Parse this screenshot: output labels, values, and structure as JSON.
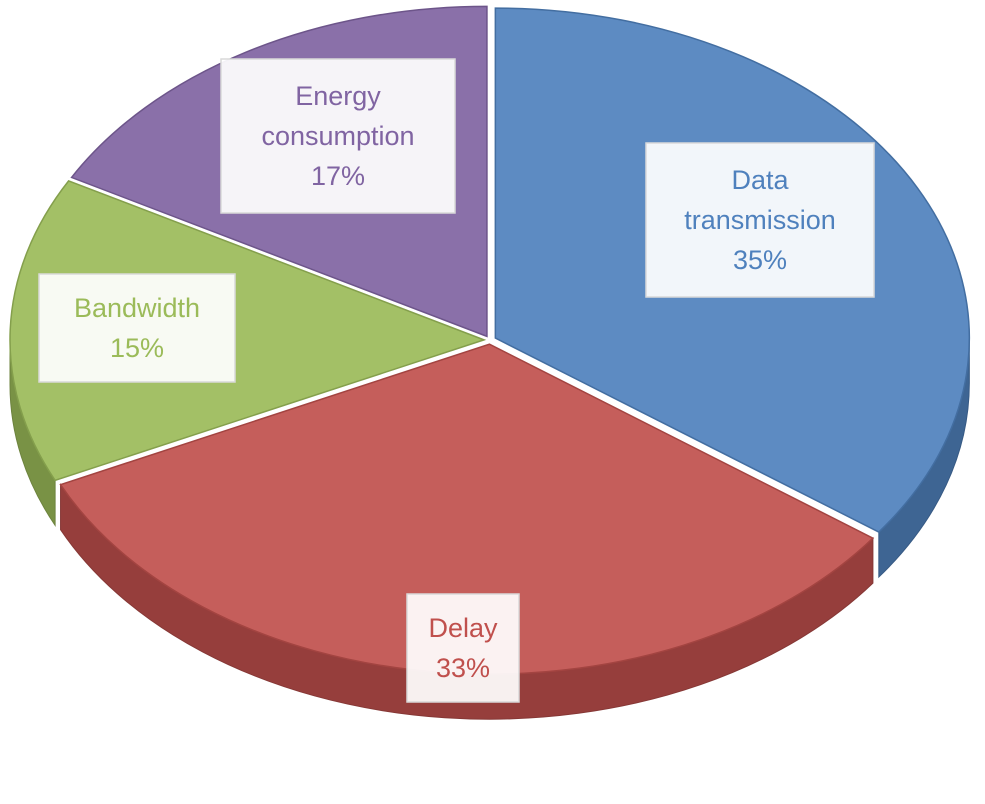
{
  "chart_data": {
    "type": "pie",
    "title": "",
    "slices": [
      {
        "label_lines": [
          "Data",
          "transmission"
        ],
        "value": 35,
        "percent_label": "35%",
        "color": "#4f81bd",
        "label_color": "#4f81bd"
      },
      {
        "label_lines": [
          "Delay"
        ],
        "value": 33,
        "percent_label": "33%",
        "color": "#c0504d",
        "label_color": "#c0504d"
      },
      {
        "label_lines": [
          "Bandwidth"
        ],
        "value": 15,
        "percent_label": "15%",
        "color": "#9bbb59",
        "label_color": "#9bbb59"
      },
      {
        "label_lines": [
          "Energy",
          "consumption"
        ],
        "value": 17,
        "percent_label": "17%",
        "color": "#8064a2",
        "label_color": "#8064a2"
      }
    ],
    "legend": "none",
    "style": "3d-exploded"
  }
}
